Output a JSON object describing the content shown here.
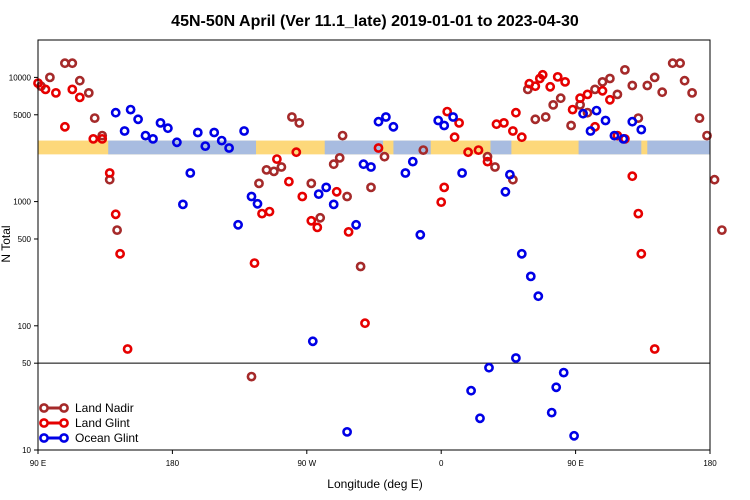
{
  "chart_data": {
    "type": "scatter",
    "title": "45N-50N April (Ver 11.1_late)   2019-01-01 to 2023-04-30",
    "xlabel": "Longitude (deg E)",
    "ylabel": "N Total",
    "y_scale": "log",
    "ylim": [
      10,
      20000
    ],
    "x_ticks": [
      {
        "pos": 90,
        "label": "90 E"
      },
      {
        "pos": 180,
        "label": "180"
      },
      {
        "pos": 270,
        "label": "90 W"
      },
      {
        "pos": 360,
        "label": "0"
      },
      {
        "pos": 450,
        "label": "90 E"
      },
      {
        "pos": 540,
        "label": "180"
      }
    ],
    "y_ticks": [
      {
        "value": 10,
        "label": "10"
      },
      {
        "value": 50,
        "label": "50"
      },
      {
        "value": 100,
        "label": "100"
      },
      {
        "value": 500,
        "label": "500"
      },
      {
        "value": 1000,
        "label": "1000"
      },
      {
        "value": 5000,
        "label": "5000"
      },
      {
        "value": 10000,
        "label": "10000"
      }
    ],
    "reference_line": 50,
    "map_strip": {
      "y_low": 2400,
      "y_high": 3100,
      "land_color": "#fdd87a",
      "ocean_color": "#a8bce0"
    },
    "legend_position": "bottom-left",
    "series": [
      {
        "name": "Land Nadir",
        "color": "#a52a2a",
        "points": [
          [
            92,
            8500
          ],
          [
            98,
            10000
          ],
          [
            108,
            13000
          ],
          [
            113,
            13000
          ],
          [
            118,
            9400
          ],
          [
            124,
            7500
          ],
          [
            128,
            4700
          ],
          [
            133,
            3400
          ],
          [
            138,
            1500
          ],
          [
            143,
            590
          ],
          [
            238,
            1400
          ],
          [
            243,
            1800
          ],
          [
            248,
            1750
          ],
          [
            253,
            1900
          ],
          [
            260,
            4800
          ],
          [
            265,
            4300
          ],
          [
            273,
            1400
          ],
          [
            279,
            740
          ],
          [
            288,
            2000
          ],
          [
            292,
            2250
          ],
          [
            294,
            3400
          ],
          [
            297,
            1100
          ],
          [
            306,
            300
          ],
          [
            313,
            1300
          ],
          [
            322,
            2300
          ],
          [
            348,
            2600
          ],
          [
            391,
            2300
          ],
          [
            396,
            1900
          ],
          [
            408,
            1500
          ],
          [
            418,
            8000
          ],
          [
            423,
            4600
          ],
          [
            430,
            4800
          ],
          [
            435,
            6000
          ],
          [
            440,
            6800
          ],
          [
            447,
            4100
          ],
          [
            453,
            6000
          ],
          [
            458,
            5200
          ],
          [
            463,
            8000
          ],
          [
            468,
            9200
          ],
          [
            473,
            9800
          ],
          [
            478,
            7300
          ],
          [
            483,
            11500
          ],
          [
            488,
            8600
          ],
          [
            492,
            4700
          ],
          [
            498,
            8600
          ],
          [
            503,
            10000
          ],
          [
            508,
            7600
          ],
          [
            515,
            13000
          ],
          [
            520,
            13000
          ],
          [
            523,
            9400
          ],
          [
            528,
            7500
          ],
          [
            533,
            4700
          ],
          [
            538,
            3400
          ],
          [
            543,
            1500
          ],
          [
            548,
            590
          ],
          [
            233,
            39
          ]
        ]
      },
      {
        "name": "Land Glint",
        "color": "#e60000",
        "points": [
          [
            90,
            9000
          ],
          [
            95,
            8000
          ],
          [
            102,
            7500
          ],
          [
            108,
            4000
          ],
          [
            113,
            8000
          ],
          [
            118,
            6900
          ],
          [
            127,
            3200
          ],
          [
            133,
            3200
          ],
          [
            138,
            1700
          ],
          [
            142,
            790
          ],
          [
            145,
            380
          ],
          [
            150,
            65
          ],
          [
            235,
            320
          ],
          [
            240,
            800
          ],
          [
            245,
            830
          ],
          [
            250,
            2200
          ],
          [
            258,
            1450
          ],
          [
            263,
            2500
          ],
          [
            267,
            1100
          ],
          [
            273,
            700
          ],
          [
            277,
            620
          ],
          [
            290,
            1200
          ],
          [
            298,
            570
          ],
          [
            309,
            105
          ],
          [
            318,
            2700
          ],
          [
            360,
            990
          ],
          [
            362,
            1300
          ],
          [
            364,
            5300
          ],
          [
            369,
            3300
          ],
          [
            372,
            4300
          ],
          [
            378,
            2500
          ],
          [
            385,
            2600
          ],
          [
            391,
            2100
          ],
          [
            397,
            4200
          ],
          [
            402,
            4300
          ],
          [
            408,
            3700
          ],
          [
            410,
            5200
          ],
          [
            414,
            3300
          ],
          [
            419,
            8900
          ],
          [
            423,
            8500
          ],
          [
            426,
            9800
          ],
          [
            428,
            10500
          ],
          [
            433,
            8400
          ],
          [
            438,
            10100
          ],
          [
            443,
            9200
          ],
          [
            448,
            5500
          ],
          [
            453,
            6800
          ],
          [
            458,
            7300
          ],
          [
            463,
            4000
          ],
          [
            468,
            7800
          ],
          [
            473,
            6600
          ],
          [
            478,
            3400
          ],
          [
            483,
            3200
          ],
          [
            488,
            1600
          ],
          [
            492,
            800
          ],
          [
            494,
            380
          ],
          [
            503,
            65
          ]
        ]
      },
      {
        "name": "Ocean Glint",
        "color": "#0000e6",
        "points": [
          [
            142,
            5200
          ],
          [
            148,
            3700
          ],
          [
            152,
            5500
          ],
          [
            157,
            4600
          ],
          [
            162,
            3400
          ],
          [
            167,
            3200
          ],
          [
            172,
            4300
          ],
          [
            177,
            3900
          ],
          [
            183,
            3000
          ],
          [
            187,
            950
          ],
          [
            192,
            1700
          ],
          [
            197,
            3600
          ],
          [
            202,
            2800
          ],
          [
            208,
            3600
          ],
          [
            213,
            3100
          ],
          [
            218,
            2700
          ],
          [
            224,
            650
          ],
          [
            228,
            3700
          ],
          [
            233,
            1100
          ],
          [
            237,
            960
          ],
          [
            274,
            75
          ],
          [
            278,
            1150
          ],
          [
            283,
            1300
          ],
          [
            288,
            950
          ],
          [
            297,
            14
          ],
          [
            303,
            650
          ],
          [
            308,
            2000
          ],
          [
            313,
            1900
          ],
          [
            318,
            4400
          ],
          [
            323,
            4800
          ],
          [
            328,
            4000
          ],
          [
            336,
            1700
          ],
          [
            341,
            2100
          ],
          [
            346,
            540
          ],
          [
            358,
            4500
          ],
          [
            362,
            4100
          ],
          [
            368,
            4800
          ],
          [
            374,
            1700
          ],
          [
            380,
            30
          ],
          [
            386,
            18
          ],
          [
            392,
            46
          ],
          [
            403,
            1200
          ],
          [
            406,
            1650
          ],
          [
            410,
            55
          ],
          [
            414,
            380
          ],
          [
            420,
            250
          ],
          [
            425,
            173
          ],
          [
            434,
            20
          ],
          [
            437,
            32
          ],
          [
            442,
            42
          ],
          [
            449,
            13
          ],
          [
            455,
            5100
          ],
          [
            460,
            3700
          ],
          [
            464,
            5400
          ],
          [
            470,
            4500
          ],
          [
            476,
            3400
          ],
          [
            482,
            3200
          ],
          [
            488,
            4400
          ],
          [
            494,
            3800
          ]
        ]
      }
    ]
  }
}
